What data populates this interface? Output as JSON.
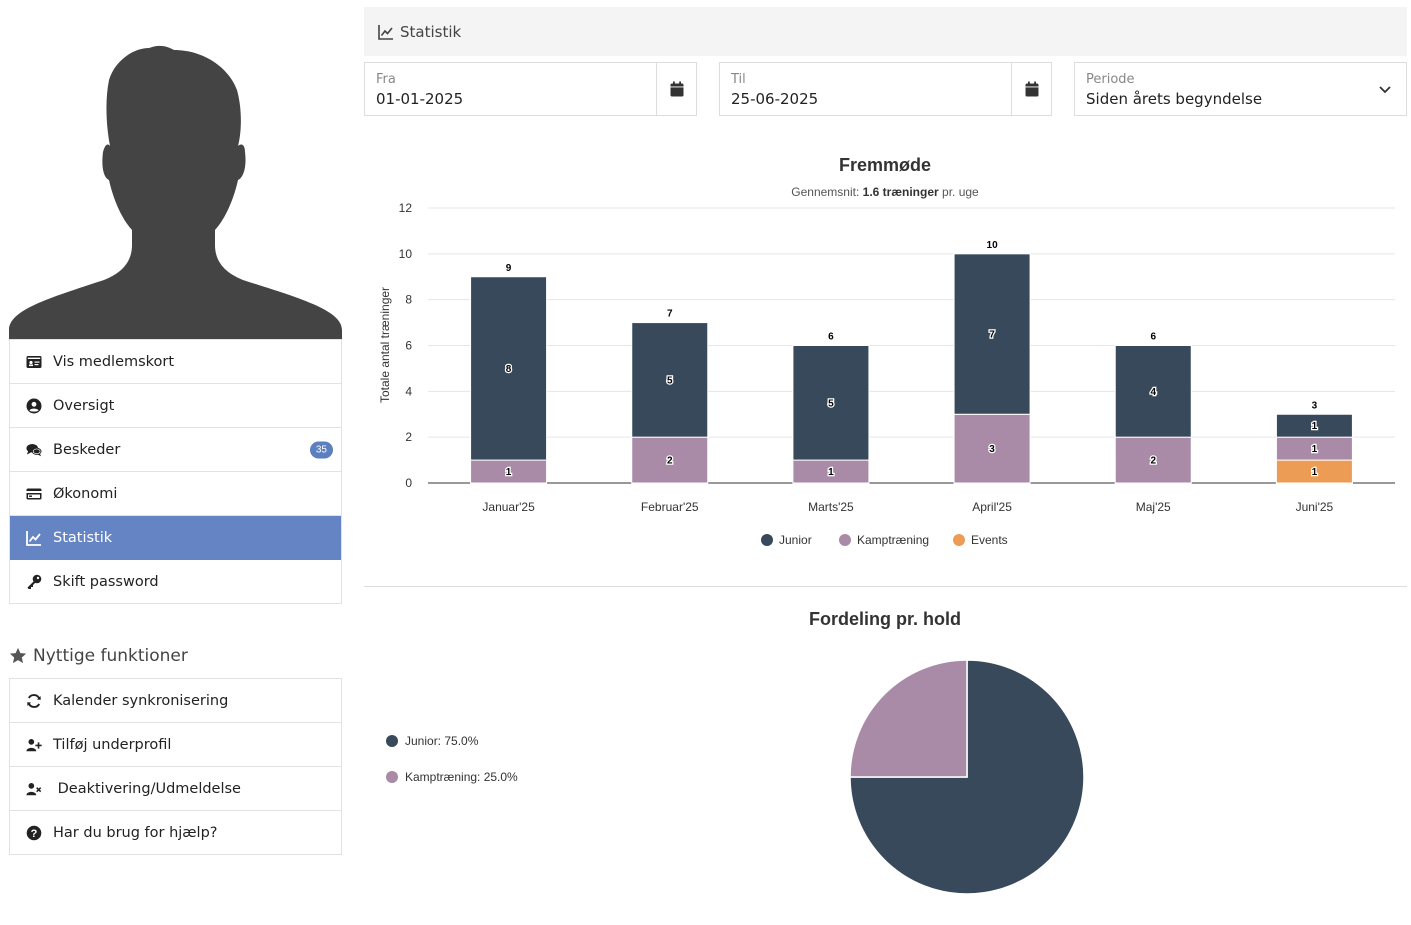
{
  "menu": {
    "items": [
      {
        "label": "Vis medlemskort",
        "icon": "id-card-icon",
        "active": false
      },
      {
        "label": "Oversigt",
        "icon": "user-circle-icon",
        "active": false
      },
      {
        "label": "Beskeder",
        "icon": "comments-icon",
        "active": false,
        "badge": "35"
      },
      {
        "label": "Økonomi",
        "icon": "credit-card-icon",
        "active": false
      },
      {
        "label": "Statistik",
        "icon": "line-chart-icon",
        "active": true
      },
      {
        "label": "Skift password",
        "icon": "key-icon",
        "active": false
      }
    ]
  },
  "tools": {
    "heading": "Nyttige funktioner",
    "items": [
      {
        "label": "Kalender synkronisering",
        "icon": "sync-icon"
      },
      {
        "label": "Tilføj underprofil",
        "icon": "user-plus-icon"
      },
      {
        "label": " Deaktivering/Udmeldelse",
        "icon": "user-times-icon"
      },
      {
        "label": "Har du brug for hjælp?",
        "icon": "question-circle-icon"
      }
    ]
  },
  "stats": {
    "header": "Statistik",
    "from": {
      "label": "Fra",
      "value": "01-01-2025"
    },
    "to": {
      "label": "Til",
      "value": "25-06-2025"
    },
    "period": {
      "label": "Periode",
      "value": "Siden årets begyndelse"
    }
  },
  "colors": {
    "junior": "#37495a",
    "kamp": "#a98ba7",
    "events": "#ed9c55",
    "accent": "#6484c4"
  },
  "chart_data": [
    {
      "type": "bar",
      "stacked": true,
      "title": "Fremmøde",
      "subtitle_prefix": "Gennemsnit: ",
      "subtitle_bold": "1.6 træninger",
      "subtitle_suffix": " pr. uge",
      "ylabel": "Totale antal træninger",
      "ylim": [
        0,
        12
      ],
      "yticks": [
        0,
        2,
        4,
        6,
        8,
        10,
        12
      ],
      "grid": true,
      "legend": "bottom",
      "categories": [
        "Januar'25",
        "Februar'25",
        "Marts'25",
        "April'25",
        "Maj'25",
        "Juni'25"
      ],
      "series": [
        {
          "name": "Events",
          "color": "#ed9c55",
          "values": [
            0,
            0,
            0,
            0,
            0,
            1
          ]
        },
        {
          "name": "Kamptræning",
          "color": "#a98ba7",
          "values": [
            1,
            2,
            1,
            3,
            2,
            1
          ]
        },
        {
          "name": "Junior",
          "color": "#37495a",
          "values": [
            8,
            5,
            5,
            7,
            4,
            1
          ]
        }
      ],
      "totals": [
        9,
        7,
        6,
        10,
        6,
        3
      ],
      "legend_order": [
        "Junior",
        "Kamptræning",
        "Events"
      ]
    },
    {
      "type": "pie",
      "title": "Fordeling pr. hold",
      "legend": "left",
      "slices": [
        {
          "name": "Junior",
          "value": 75.0,
          "label": "Junior: 75.0%",
          "color": "#37495a"
        },
        {
          "name": "Kamptræning",
          "value": 25.0,
          "label": "Kamptræning: 25.0%",
          "color": "#a98ba7"
        }
      ]
    }
  ]
}
